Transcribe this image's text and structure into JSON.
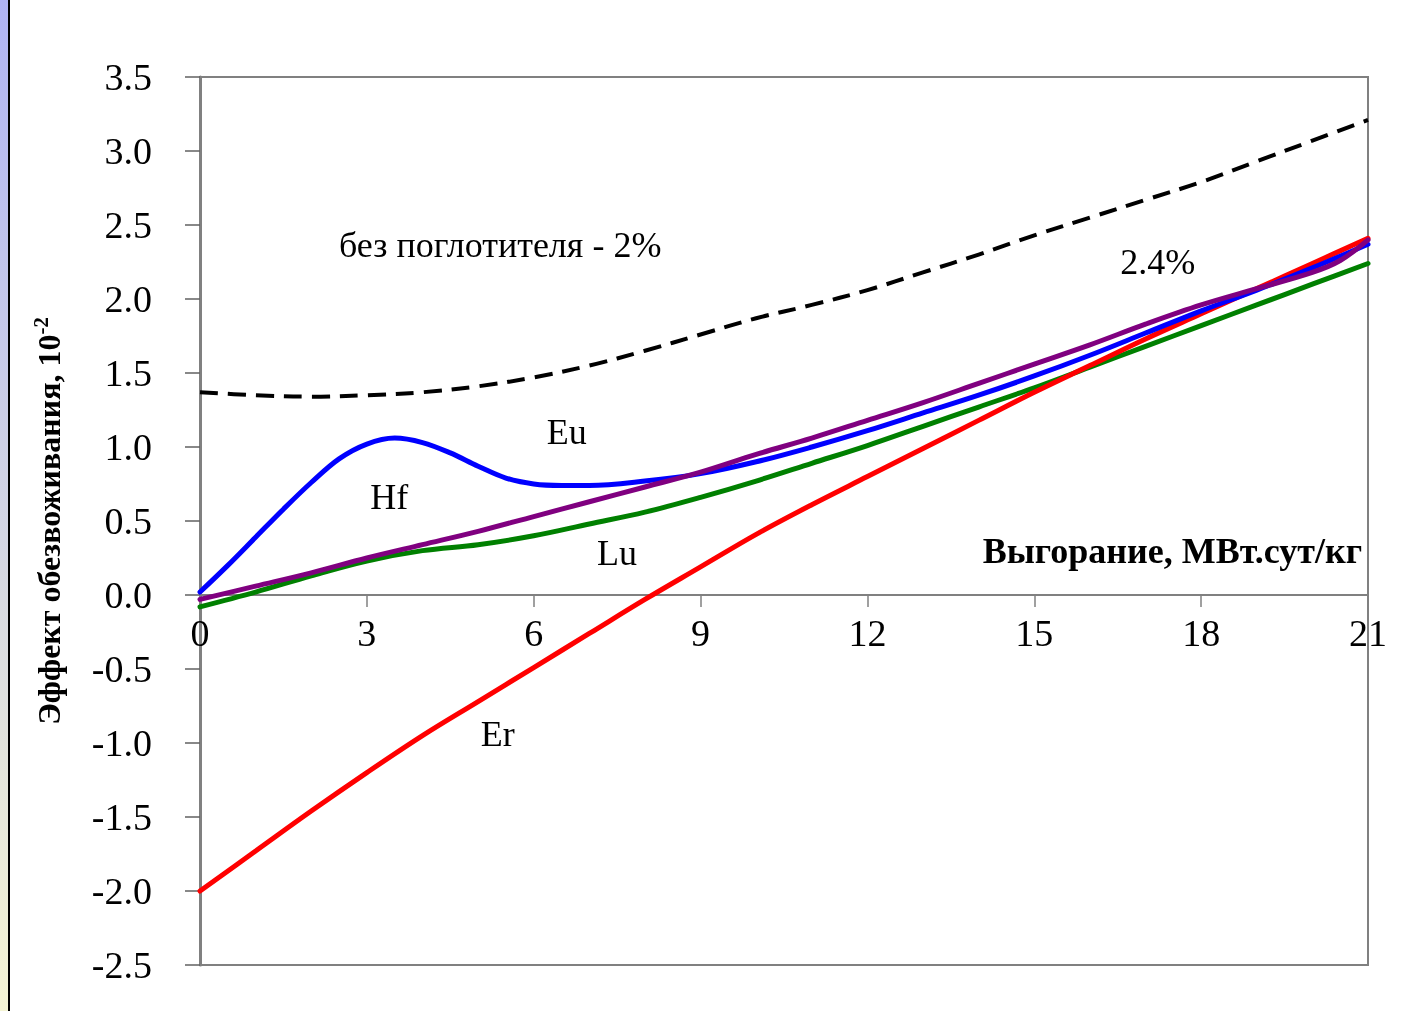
{
  "chart_data": {
    "type": "line",
    "xlabel": "Выгорание, МВт.сут/кг",
    "ylabel": "Эффект обезвоживания, 10$^{-2}$",
    "x": [
      0,
      1,
      2,
      3,
      4,
      5,
      6,
      7,
      8,
      9,
      10,
      11,
      12,
      13,
      14,
      15,
      16,
      17,
      18,
      19,
      20,
      21
    ],
    "series": [
      {
        "name": "без поглотителя - 2%",
        "color": "#000000",
        "line_style": "dashed",
        "values": [
          1.37,
          1.35,
          1.34,
          1.35,
          1.37,
          1.41,
          1.47,
          1.55,
          1.65,
          1.76,
          1.87,
          1.96,
          2.06,
          2.18,
          2.3,
          2.43,
          2.55,
          2.67,
          2.79,
          2.93,
          3.07,
          3.21
        ]
      },
      {
        "name": "Lu",
        "color": "#008000",
        "values": [
          -0.08,
          0.02,
          0.13,
          0.23,
          0.3,
          0.34,
          0.4,
          0.48,
          0.56,
          0.66,
          0.77,
          0.89,
          1.01,
          1.14,
          1.27,
          1.4,
          1.54,
          1.68,
          1.82,
          1.96,
          2.1,
          2.24
        ]
      },
      {
        "name": "Er",
        "color": "#ff0000",
        "values": [
          -2.0,
          -1.73,
          -1.46,
          -1.2,
          -0.95,
          -0.72,
          -0.49,
          -0.26,
          -0.03,
          0.19,
          0.41,
          0.61,
          0.8,
          0.99,
          1.18,
          1.37,
          1.55,
          1.73,
          1.9,
          2.07,
          2.24,
          2.41
        ]
      },
      {
        "name": "Eu",
        "color": "#0000ff",
        "x": [
          0,
          0.5,
          1,
          1.5,
          2,
          2.5,
          3,
          3.5,
          4,
          4.5,
          5,
          5.5,
          6,
          6.5,
          7,
          8,
          9,
          10,
          11,
          12,
          13,
          14,
          15,
          16,
          17,
          18,
          19,
          20,
          21
        ],
        "values": [
          0.02,
          0.2,
          0.39,
          0.58,
          0.76,
          0.92,
          1.02,
          1.06,
          1.03,
          0.96,
          0.87,
          0.79,
          0.75,
          0.74,
          0.74,
          0.77,
          0.82,
          0.9,
          1.0,
          1.11,
          1.23,
          1.35,
          1.48,
          1.62,
          1.77,
          1.92,
          2.06,
          2.21,
          2.37
        ]
      },
      {
        "name": "Hf",
        "color": "#800080",
        "x": [
          0,
          1,
          2,
          3,
          4,
          5,
          6,
          7,
          8,
          9,
          10,
          11,
          12,
          13,
          14,
          15,
          16,
          17,
          18,
          19,
          20,
          20.5,
          21
        ],
        "values": [
          -0.03,
          0.06,
          0.15,
          0.25,
          0.34,
          0.43,
          0.53,
          0.63,
          0.73,
          0.83,
          0.95,
          1.06,
          1.18,
          1.3,
          1.43,
          1.56,
          1.69,
          1.83,
          1.96,
          2.07,
          2.18,
          2.26,
          2.4
        ]
      }
    ],
    "xlim": [
      0,
      21
    ],
    "xticks": [
      0,
      3,
      6,
      9,
      12,
      15,
      18,
      21
    ],
    "ylim": [
      -2.5,
      3.5
    ],
    "yticks": [
      -2.5,
      {
        "value": -2,
        "label": "-2.0"
      },
      -1.5,
      {
        "value": -1,
        "label": "-1.0"
      },
      -0.5,
      {
        "value": 0,
        "label": "0.0"
      },
      0.5,
      {
        "value": 1,
        "label": "1.0"
      },
      1.5,
      {
        "value": 2,
        "label": "2.0"
      },
      2.5,
      {
        "value": 3,
        "label": "3.0"
      },
      3.5
    ],
    "grid": false,
    "marker": "none",
    "line_style": "solid",
    "annotations": [
      "2.4%"
    ]
  }
}
